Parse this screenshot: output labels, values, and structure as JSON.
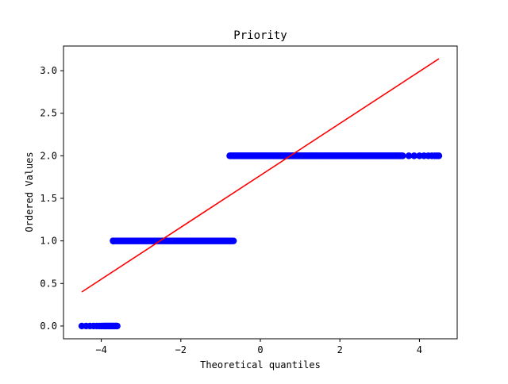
{
  "chart_data": {
    "type": "scatter",
    "title": "Priority",
    "xlabel": "Theoretical quantiles",
    "ylabel": "Ordered Values",
    "xlim": [
      -4.95,
      4.95
    ],
    "ylim": [
      -0.15,
      3.29
    ],
    "xticks": [
      -4,
      -2,
      0,
      2,
      4
    ],
    "xtick_labels": [
      "−4",
      "−2",
      "0",
      "2",
      "4"
    ],
    "yticks": [
      0.0,
      0.5,
      1.0,
      1.5,
      2.0,
      2.5,
      3.0
    ],
    "ytick_labels": [
      "0.0",
      "0.5",
      "1.0",
      "1.5",
      "2.0",
      "2.5",
      "3.0"
    ],
    "grid": false,
    "series": [
      {
        "kind": "points",
        "color": "#0000ff",
        "segments": [
          {
            "y": 0.0,
            "x_from": -4.49,
            "x_to": -3.6,
            "dense_from": -3.95
          },
          {
            "y": 1.0,
            "x_from": -3.7,
            "x_to": -0.67,
            "dense_from": -3.7
          },
          {
            "y": 2.0,
            "x_from": -0.77,
            "x_to": 4.49,
            "dense_to": 3.6
          }
        ]
      },
      {
        "kind": "fit-line",
        "color": "#ff0000",
        "points": [
          [
            -4.49,
            0.4
          ],
          [
            4.49,
            3.14
          ]
        ]
      }
    ]
  }
}
